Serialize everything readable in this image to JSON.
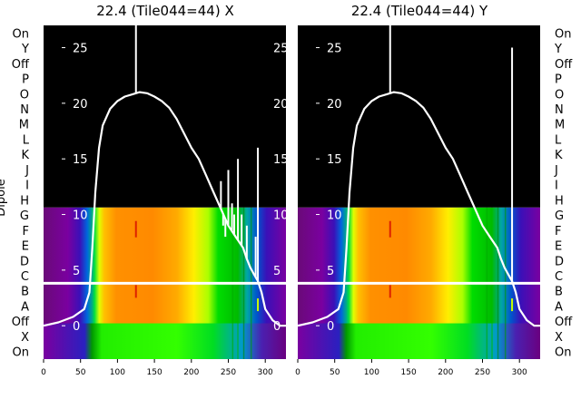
{
  "chart_data": [
    {
      "type": "heatmap",
      "title": "22.4 (Tile044=44) X",
      "ylabel": "Dipole",
      "rows_top_to_bottom": [
        "On",
        "Y",
        "Off",
        "P",
        "O",
        "N",
        "M",
        "L",
        "K",
        "J",
        "I",
        "H",
        "G",
        "F",
        "E",
        "D",
        "C",
        "B",
        "A",
        "Off",
        "X",
        "On"
      ],
      "xticks": [
        0,
        50,
        100,
        150,
        200,
        250,
        300
      ],
      "xlim": [
        0,
        328
      ],
      "overlay_yticks": [
        0,
        5,
        10,
        15,
        20,
        25
      ],
      "overlay_ylim": [
        -3,
        27
      ],
      "blackout_rows": [
        "On",
        "Y",
        "Off",
        "P",
        "O",
        "N",
        "M",
        "L",
        "K",
        "J",
        "I",
        "H"
      ],
      "separator_between": [
        "C",
        "B"
      ],
      "colormap": "nipy_spectral",
      "overlay_line": {
        "color": "#ffffff",
        "x": [
          0,
          20,
          40,
          55,
          62,
          66,
          70,
          75,
          80,
          90,
          100,
          110,
          120,
          125,
          130,
          140,
          150,
          160,
          170,
          180,
          190,
          200,
          210,
          220,
          230,
          240,
          250,
          260,
          270,
          275,
          280,
          285,
          290,
          295,
          300,
          310,
          320,
          328
        ],
        "y": [
          0,
          0.3,
          0.8,
          1.5,
          3,
          7,
          12,
          16,
          18,
          19.5,
          20.2,
          20.6,
          20.8,
          20.9,
          21.0,
          20.9,
          20.6,
          20.2,
          19.6,
          18.6,
          17.3,
          16.0,
          15.0,
          13.5,
          12.0,
          10.5,
          9.0,
          8.0,
          7.0,
          6.0,
          5.2,
          4.6,
          4.0,
          3.0,
          1.5,
          0.5,
          0.0,
          0.0
        ],
        "spikes": [
          [
            125,
            27
          ],
          [
            240,
            13
          ],
          [
            243,
            9
          ],
          [
            246,
            8
          ],
          [
            250,
            14
          ],
          [
            255,
            11
          ],
          [
            258,
            10
          ],
          [
            263,
            15
          ],
          [
            268,
            10
          ],
          [
            275,
            9
          ],
          [
            287,
            8
          ],
          [
            290,
            16
          ]
        ]
      }
    },
    {
      "type": "heatmap",
      "title": "22.4 (Tile044=44) Y",
      "rows_top_to_bottom": [
        "On",
        "Y",
        "Off",
        "P",
        "O",
        "N",
        "M",
        "L",
        "K",
        "J",
        "I",
        "H",
        "G",
        "F",
        "E",
        "D",
        "C",
        "B",
        "A",
        "Off",
        "X",
        "On"
      ],
      "xticks": [
        0,
        50,
        100,
        150,
        200,
        250,
        300
      ],
      "xlim": [
        0,
        328
      ],
      "overlay_yticks": [
        0,
        5,
        10,
        15,
        20,
        25
      ],
      "overlay_ylim": [
        -3,
        27
      ],
      "blackout_rows": [
        "On",
        "Y",
        "Off",
        "P",
        "O",
        "N",
        "M",
        "L",
        "K",
        "J",
        "I",
        "H"
      ],
      "separator_between": [
        "C",
        "B"
      ],
      "colormap": "nipy_spectral",
      "overlay_line": {
        "color": "#ffffff",
        "x": [
          0,
          20,
          40,
          55,
          62,
          66,
          70,
          75,
          80,
          90,
          100,
          110,
          120,
          125,
          130,
          140,
          150,
          160,
          170,
          180,
          190,
          200,
          210,
          220,
          230,
          240,
          250,
          260,
          270,
          275,
          280,
          285,
          290,
          295,
          300,
          310,
          320,
          328
        ],
        "y": [
          0,
          0.3,
          0.8,
          1.5,
          3,
          7,
          12,
          16,
          18,
          19.5,
          20.2,
          20.6,
          20.8,
          20.9,
          21.0,
          20.9,
          20.6,
          20.2,
          19.6,
          18.6,
          17.3,
          16.0,
          15.0,
          13.5,
          12.0,
          10.5,
          9.0,
          8.0,
          7.0,
          6.0,
          5.2,
          4.6,
          4.0,
          3.0,
          1.5,
          0.5,
          0.0,
          0.0
        ],
        "spikes": [
          [
            125,
            27
          ],
          [
            290,
            25
          ]
        ]
      }
    }
  ]
}
